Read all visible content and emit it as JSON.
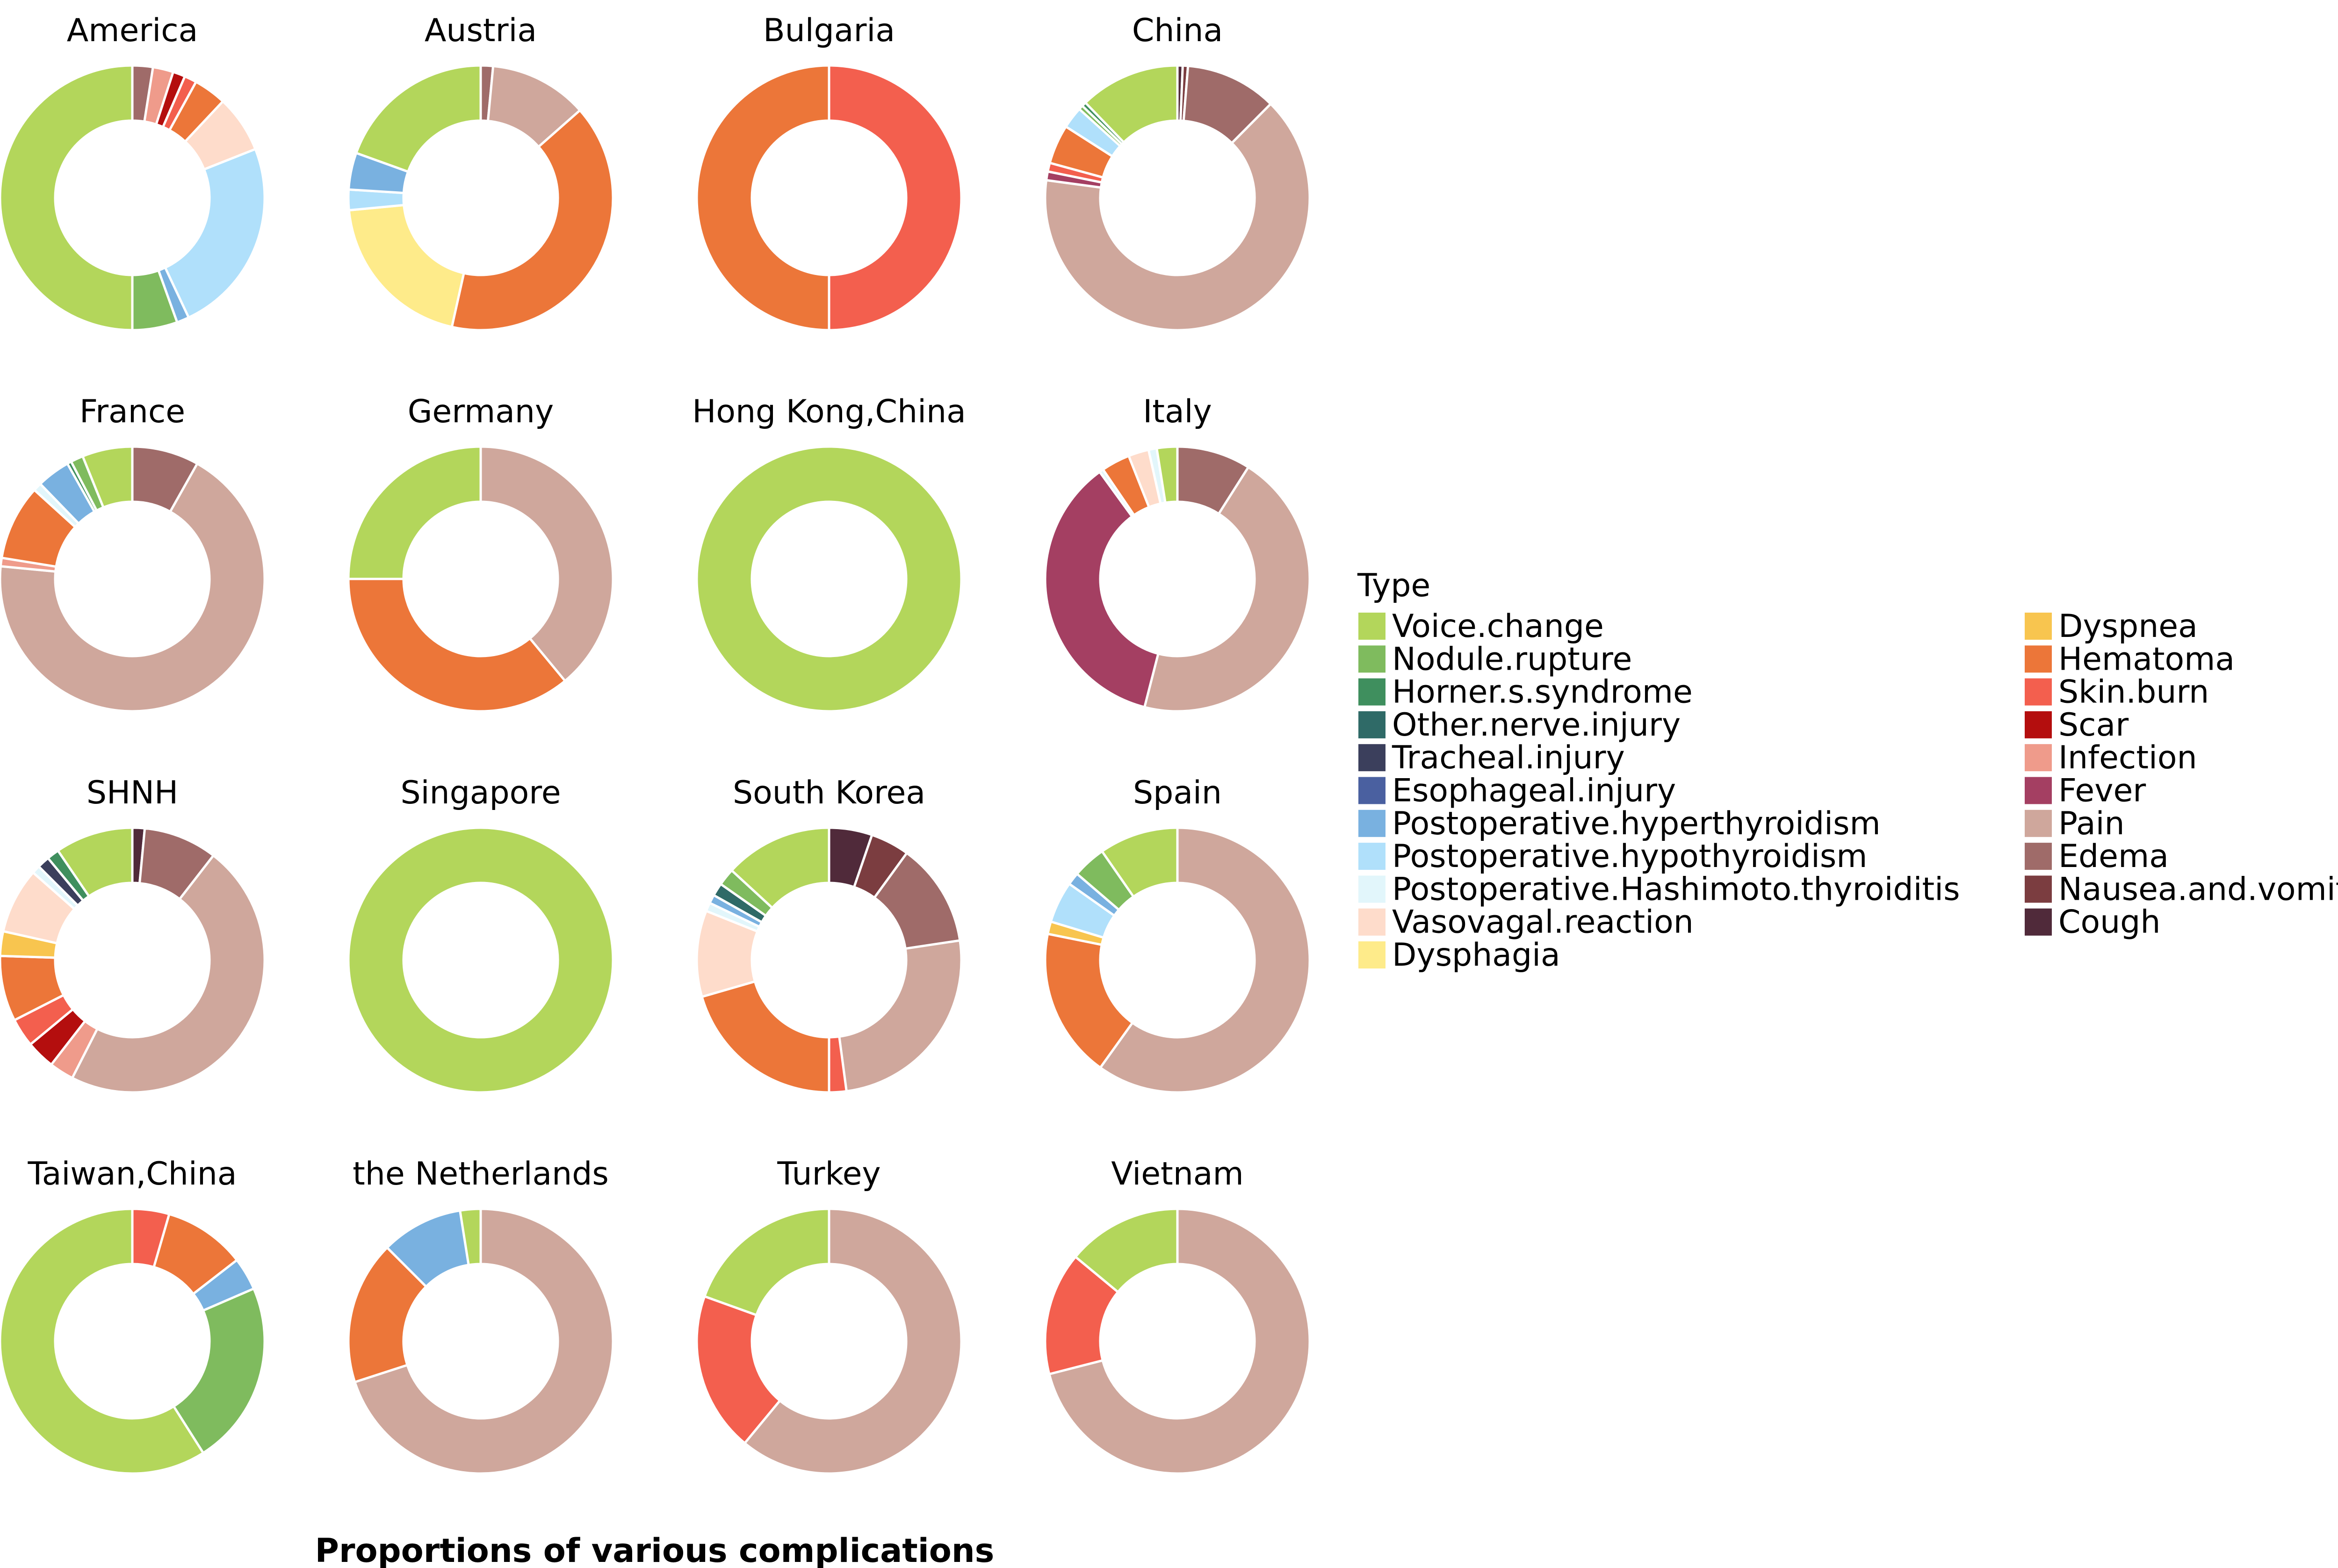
{
  "caption": "Proportions of various complications",
  "legend": {
    "title": "Type",
    "items": [
      {
        "name": "Voice.change",
        "color": "#b3d65b"
      },
      {
        "name": "Nodule.rupture",
        "color": "#7fbb5e"
      },
      {
        "name": "Horner.s.syndrome",
        "color": "#3f8f5e"
      },
      {
        "name": "Other.nerve.injury",
        "color": "#2f6a67"
      },
      {
        "name": "Tracheal.injury",
        "color": "#3b3f5c"
      },
      {
        "name": "Esophageal.injury",
        "color": "#4a60a0"
      },
      {
        "name": "Postoperative.hyperthyroidism",
        "color": "#79b1e0"
      },
      {
        "name": "Postoperative.hypothyroidism",
        "color": "#b0e0fb"
      },
      {
        "name": "Postoperative.Hashimoto.thyroiditis",
        "color": "#e2f6fb"
      },
      {
        "name": "Vasovagal.reaction",
        "color": "#fedccb"
      },
      {
        "name": "Dysphagia",
        "color": "#feeb8a"
      },
      {
        "name": "Dyspnea",
        "color": "#f8c54f"
      },
      {
        "name": "Hematoma",
        "color": "#ec7639"
      },
      {
        "name": "Skin.burn",
        "color": "#f35f4e"
      },
      {
        "name": "Scar",
        "color": "#b40e0e"
      },
      {
        "name": "Infection",
        "color": "#ef9b8b"
      },
      {
        "name": "Fever",
        "color": "#a43f62"
      },
      {
        "name": "Pain",
        "color": "#cfa79c"
      },
      {
        "name": "Edema",
        "color": "#9f6b69"
      },
      {
        "name": "Nausea.and.vomiting",
        "color": "#7b3d40"
      },
      {
        "name": "Cough",
        "color": "#502a3a"
      }
    ]
  },
  "chart_data": [
    {
      "type": "pie",
      "title": "America",
      "slices": [
        {
          "category": "Edema",
          "value": 2.5
        },
        {
          "category": "Infection",
          "value": 2.5
        },
        {
          "category": "Scar",
          "value": 1.5
        },
        {
          "category": "Skin.burn",
          "value": 1.5
        },
        {
          "category": "Hematoma",
          "value": 4.0
        },
        {
          "category": "Vasovagal.reaction",
          "value": 7.0
        },
        {
          "category": "Postoperative.hypothyroidism",
          "value": 24.0
        },
        {
          "category": "Postoperative.hyperthyroidism",
          "value": 1.5
        },
        {
          "category": "Nodule.rupture",
          "value": 5.5
        },
        {
          "category": "Voice.change",
          "value": 50.0
        }
      ]
    },
    {
      "type": "pie",
      "title": "Austria",
      "slices": [
        {
          "category": "Edema",
          "value": 1.5
        },
        {
          "category": "Pain",
          "value": 12.0
        },
        {
          "category": "Hematoma",
          "value": 40.0
        },
        {
          "category": "Dysphagia",
          "value": 20.0
        },
        {
          "category": "Postoperative.hypothyroidism",
          "value": 2.5
        },
        {
          "category": "Postoperative.hyperthyroidism",
          "value": 4.5
        },
        {
          "category": "Voice.change",
          "value": 19.5
        }
      ]
    },
    {
      "type": "pie",
      "title": "Bulgaria",
      "slices": [
        {
          "category": "Skin.burn",
          "value": 50.0
        },
        {
          "category": "Hematoma",
          "value": 50.0
        }
      ]
    },
    {
      "type": "pie",
      "title": "China",
      "slices": [
        {
          "category": "Cough",
          "value": 0.6
        },
        {
          "category": "Nausea.and.vomiting",
          "value": 0.6
        },
        {
          "category": "Edema",
          "value": 10.5
        },
        {
          "category": "Pain",
          "value": 60.8
        },
        {
          "category": "Fever",
          "value": 1.0
        },
        {
          "category": "Skin.burn",
          "value": 1.0
        },
        {
          "category": "Hematoma",
          "value": 4.5
        },
        {
          "category": "Postoperative.hypothyroidism",
          "value": 2.5
        },
        {
          "category": "Nodule.rupture",
          "value": 0.5
        },
        {
          "category": "Horner.s.syndrome",
          "value": 0.5
        },
        {
          "category": "Voice.change",
          "value": 11.5
        }
      ]
    },
    {
      "type": "pie",
      "title": "France",
      "slices": [
        {
          "category": "Edema",
          "value": 8.0
        },
        {
          "category": "Pain",
          "value": 67.0
        },
        {
          "category": "Infection",
          "value": 1.0
        },
        {
          "category": "Hematoma",
          "value": 9.0
        },
        {
          "category": "Postoperative.Hashimoto.thyroiditis",
          "value": 1.0
        },
        {
          "category": "Postoperative.hyperthyroidism",
          "value": 4.0
        },
        {
          "category": "Horner.s.syndrome",
          "value": 0.5
        },
        {
          "category": "Nodule.rupture",
          "value": 1.5
        },
        {
          "category": "Voice.change",
          "value": 6.0
        }
      ]
    },
    {
      "type": "pie",
      "title": "Germany",
      "slices": [
        {
          "category": "Pain",
          "value": 39.0
        },
        {
          "category": "Hematoma",
          "value": 36.0
        },
        {
          "category": "Voice.change",
          "value": 25.0
        }
      ]
    },
    {
      "type": "pie",
      "title": "Hong Kong,China",
      "slices": [
        {
          "category": "Voice.change",
          "value": 100.0
        }
      ]
    },
    {
      "type": "pie",
      "title": "Italy",
      "slices": [
        {
          "category": "Edema",
          "value": 9.0
        },
        {
          "category": "Pain",
          "value": 45.0
        },
        {
          "category": "Fever",
          "value": 36.0
        },
        {
          "category": "Postoperative.Hashimoto.thyroiditis",
          "value": 0.5
        },
        {
          "category": "Hematoma",
          "value": 3.5
        },
        {
          "category": "Vasovagal.reaction",
          "value": 2.5
        },
        {
          "category": "Postoperative.Hashimoto.thyroiditis",
          "value": 1.0
        },
        {
          "category": "Voice.change",
          "value": 2.5
        }
      ]
    },
    {
      "type": "pie",
      "title": "SHNH",
      "slices": [
        {
          "category": "Cough",
          "value": 1.5
        },
        {
          "category": "Edema",
          "value": 9.0
        },
        {
          "category": "Pain",
          "value": 47.0
        },
        {
          "category": "Infection",
          "value": 3.0
        },
        {
          "category": "Scar",
          "value": 3.5
        },
        {
          "category": "Skin.burn",
          "value": 3.5
        },
        {
          "category": "Hematoma",
          "value": 8.0
        },
        {
          "category": "Dyspnea",
          "value": 3.0
        },
        {
          "category": "Vasovagal.reaction",
          "value": 8.0
        },
        {
          "category": "Postoperative.Hashimoto.thyroiditis",
          "value": 1.0
        },
        {
          "category": "Tracheal.injury",
          "value": 1.5
        },
        {
          "category": "Horner.s.syndrome",
          "value": 1.5
        },
        {
          "category": "Voice.change",
          "value": 9.5
        }
      ]
    },
    {
      "type": "pie",
      "title": "Singapore",
      "slices": [
        {
          "category": "Voice.change",
          "value": 100.0
        }
      ]
    },
    {
      "type": "pie",
      "title": "South Korea",
      "slices": [
        {
          "category": "Cough",
          "value": 5.0
        },
        {
          "category": "Nausea.and.vomiting",
          "value": 4.5
        },
        {
          "category": "Edema",
          "value": 12.0
        },
        {
          "category": "Pain",
          "value": 24.0
        },
        {
          "category": "Skin.burn",
          "value": 2.0
        },
        {
          "category": "Hematoma",
          "value": 19.5
        },
        {
          "category": "Vasovagal.reaction",
          "value": 10.0
        },
        {
          "category": "Postoperative.Hashimoto.thyroiditis",
          "value": 1.0
        },
        {
          "category": "Postoperative.hyperthyroidism",
          "value": 1.0
        },
        {
          "category": "Other.nerve.injury",
          "value": 1.5
        },
        {
          "category": "Nodule.rupture",
          "value": 2.0
        },
        {
          "category": "Voice.change",
          "value": 12.5
        }
      ]
    },
    {
      "type": "pie",
      "title": "Spain",
      "slices": [
        {
          "category": "Pain",
          "value": 59.0
        },
        {
          "category": "Hematoma",
          "value": 18.0
        },
        {
          "category": "Dyspnea",
          "value": 1.5
        },
        {
          "category": "Postoperative.hypothyroidism",
          "value": 5.0
        },
        {
          "category": "Postoperative.hyperthyroidism",
          "value": 1.5
        },
        {
          "category": "Nodule.rupture",
          "value": 4.0
        },
        {
          "category": "Voice.change",
          "value": 9.5
        }
      ]
    },
    {
      "type": "pie",
      "title": "Taiwan,China",
      "slices": [
        {
          "category": "Skin.burn",
          "value": 4.5
        },
        {
          "category": "Hematoma",
          "value": 10.0
        },
        {
          "category": "Postoperative.hyperthyroidism",
          "value": 4.0
        },
        {
          "category": "Nodule.rupture",
          "value": 22.5
        },
        {
          "category": "Voice.change",
          "value": 59.0
        }
      ]
    },
    {
      "type": "pie",
      "title": "the Netherlands",
      "slices": [
        {
          "category": "Pain",
          "value": 70.0
        },
        {
          "category": "Hematoma",
          "value": 17.5
        },
        {
          "category": "Postoperative.hyperthyroidism",
          "value": 10.0
        },
        {
          "category": "Voice.change",
          "value": 2.5
        }
      ]
    },
    {
      "type": "pie",
      "title": "Turkey",
      "slices": [
        {
          "category": "Pain",
          "value": 61.0
        },
        {
          "category": "Skin.burn",
          "value": 19.5
        },
        {
          "category": "Voice.change",
          "value": 19.5
        }
      ]
    },
    {
      "type": "pie",
      "title": "Vietnam",
      "slices": [
        {
          "category": "Pain",
          "value": 71.0
        },
        {
          "category": "Skin.burn",
          "value": 15.0
        },
        {
          "category": "Voice.change",
          "value": 14.0
        }
      ]
    }
  ]
}
